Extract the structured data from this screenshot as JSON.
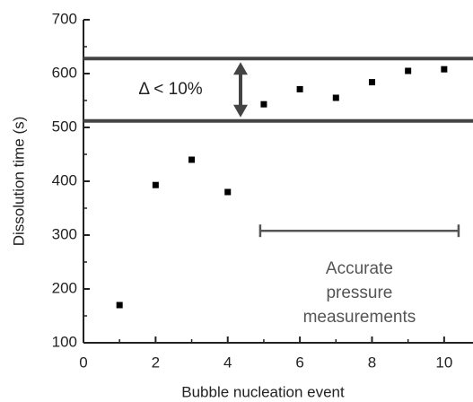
{
  "chart_data": {
    "type": "scatter",
    "x_label": "Bubble nucleation event",
    "y_label": "Dissolution time (s)",
    "x": [
      1,
      2,
      3,
      4,
      5,
      6,
      7,
      8,
      9,
      10
    ],
    "values": [
      170,
      393,
      440,
      380,
      543,
      571,
      555,
      584,
      605,
      608
    ],
    "color": "#000000",
    "xlim": [
      0,
      10.8
    ],
    "xticks": [
      0,
      2,
      4,
      6,
      8,
      10
    ],
    "xminorticks": [
      1,
      3,
      5,
      7,
      9
    ],
    "ylim": [
      100,
      700
    ],
    "yticks": [
      100,
      200,
      300,
      400,
      500,
      600,
      700
    ],
    "yminorticks": [
      150,
      250,
      350,
      450,
      550,
      650
    ],
    "hlines": [
      628,
      512
    ],
    "hline_color": "#444444",
    "delta_label": "Δ < 10%",
    "range_bar": {
      "x": [
        4.9,
        10.4
      ],
      "y": 308,
      "color": "#555555"
    },
    "range_label": [
      "Accurate",
      "pressure",
      "measurements"
    ]
  }
}
